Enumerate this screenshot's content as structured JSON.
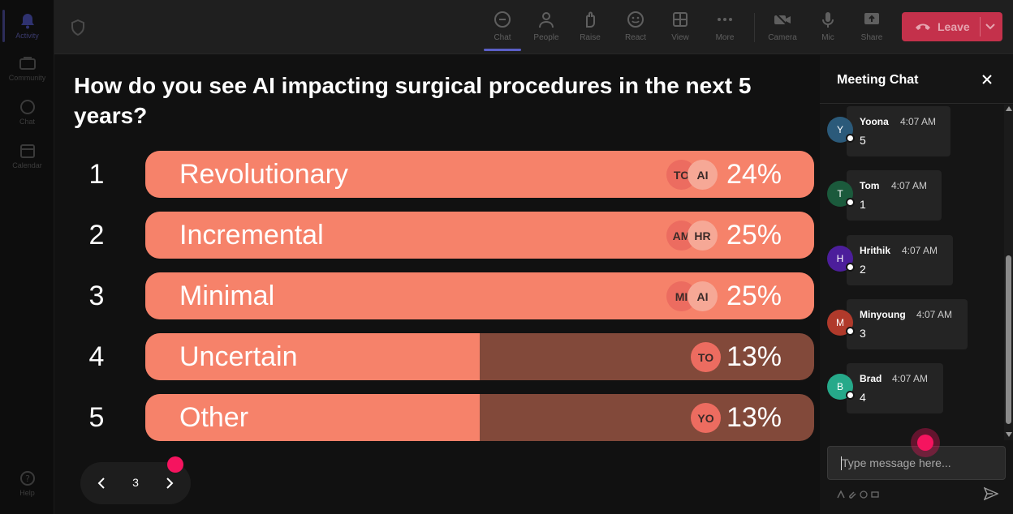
{
  "rail": {
    "items": [
      {
        "label": "Activity",
        "icon": "bell-icon"
      },
      {
        "label": "Community",
        "icon": "community-icon"
      },
      {
        "label": "Chat",
        "icon": "chat-icon"
      },
      {
        "label": "Calendar",
        "icon": "calendar-icon"
      }
    ],
    "help": {
      "label": "Help",
      "icon": "help-icon"
    }
  },
  "toolbar": {
    "chat": "Chat",
    "people": "People",
    "raise": "Raise",
    "react": "React",
    "view": "View",
    "more": "More",
    "camera": "Camera",
    "mic": "Mic",
    "share": "Share",
    "leave": "Leave"
  },
  "poll": {
    "question": "How do you see AI impacting surgical procedures in the next 5 years?",
    "options": [
      {
        "num": "1",
        "label": "Revolutionary",
        "percent": "24%",
        "fill": 1.0,
        "avatars": [
          "TO",
          "AI"
        ]
      },
      {
        "num": "2",
        "label": "Incremental",
        "percent": "25%",
        "fill": 1.0,
        "avatars": [
          "AM",
          "HR"
        ]
      },
      {
        "num": "3",
        "label": "Minimal",
        "percent": "25%",
        "fill": 1.0,
        "avatars": [
          "MI",
          "AI"
        ]
      },
      {
        "num": "4",
        "label": "Uncertain",
        "percent": "13%",
        "fill": 0.5,
        "avatars": [
          "TO"
        ]
      },
      {
        "num": "5",
        "label": "Other",
        "percent": "13%",
        "fill": 0.5,
        "avatars": [
          "YO"
        ]
      }
    ],
    "page": "3"
  },
  "chat": {
    "title": "Meeting Chat",
    "messages": [
      {
        "initial": "Y",
        "name": "Yoona",
        "time": "4:07 AM",
        "text": "5",
        "color": "#2b5a7a"
      },
      {
        "initial": "T",
        "name": "Tom",
        "time": "4:07 AM",
        "text": "1",
        "color": "#1b5a3c"
      },
      {
        "initial": "H",
        "name": "Hrithik",
        "time": "4:07 AM",
        "text": "2",
        "color": "#4c1e9b"
      },
      {
        "initial": "M",
        "name": "Minyoung",
        "time": "4:07 AM",
        "text": "3",
        "color": "#b03a2b"
      },
      {
        "initial": "B",
        "name": "Brad",
        "time": "4:07 AM",
        "text": "4",
        "color": "#26a98a"
      }
    ],
    "placeholder": "Type message here..."
  },
  "colors": {
    "bar_fill": "#f6826a",
    "bar_track": "#82493a",
    "leave": "#c4314b",
    "accent": "#5b5fc7",
    "highlight_dot": "#f5145f"
  }
}
